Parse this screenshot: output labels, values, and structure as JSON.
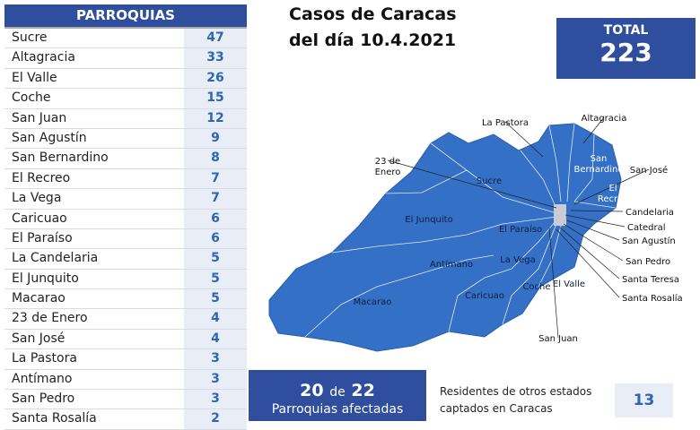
{
  "header": {
    "title": "PARROQUIAS"
  },
  "table": {
    "rows": [
      [
        "Sucre",
        47
      ],
      [
        "Altagracia",
        33
      ],
      [
        "El Valle",
        26
      ],
      [
        "Coche",
        15
      ],
      [
        "San Juan",
        12
      ],
      [
        "San Agustín",
        9
      ],
      [
        "San Bernardino",
        8
      ],
      [
        "El Recreo",
        7
      ],
      [
        "La Vega",
        7
      ],
      [
        "Caricuao",
        6
      ],
      [
        "El Paraíso",
        6
      ],
      [
        "La Candelaria",
        5
      ],
      [
        "El Junquito",
        5
      ],
      [
        "Macarao",
        5
      ],
      [
        "23 de Enero",
        4
      ],
      [
        "San José",
        4
      ],
      [
        "La Pastora",
        3
      ],
      [
        "Antímano",
        3
      ],
      [
        "San Pedro",
        3
      ],
      [
        "Santa Rosalía",
        2
      ]
    ]
  },
  "title": [
    "Casos de Caracas",
    "del día 10.4.2021"
  ],
  "total": {
    "label": "TOTAL",
    "value": 223
  },
  "map": {
    "labels": [
      [
        "La Pastora"
      ],
      [
        "Altagracia"
      ],
      [
        "23 de",
        "Enero"
      ],
      [
        "Sucre"
      ],
      [
        "San",
        "Bernardino"
      ],
      [
        "San José"
      ],
      [
        "El",
        "Recreo"
      ],
      [
        "El Junquito"
      ],
      [
        "Candelaria"
      ],
      [
        "Catedral"
      ],
      [
        "El Paraíso"
      ],
      [
        "San Agustín"
      ],
      [
        "La Vega"
      ],
      [
        "San Pedro"
      ],
      [
        "Antímano"
      ],
      [
        "Santa Teresa"
      ],
      [
        "Caricuao"
      ],
      [
        "Coche"
      ],
      [
        "El Valle"
      ],
      [
        "Santa Rosalía"
      ],
      [
        "Macarao"
      ],
      [
        "San Juan"
      ]
    ]
  },
  "summary": {
    "affected": 20,
    "connector": "de",
    "total": 22,
    "caption": "Parroquias afectadas"
  },
  "residents": {
    "text": [
      "Residentes de otros estados",
      "captados en Caracas"
    ],
    "value": 13
  }
}
